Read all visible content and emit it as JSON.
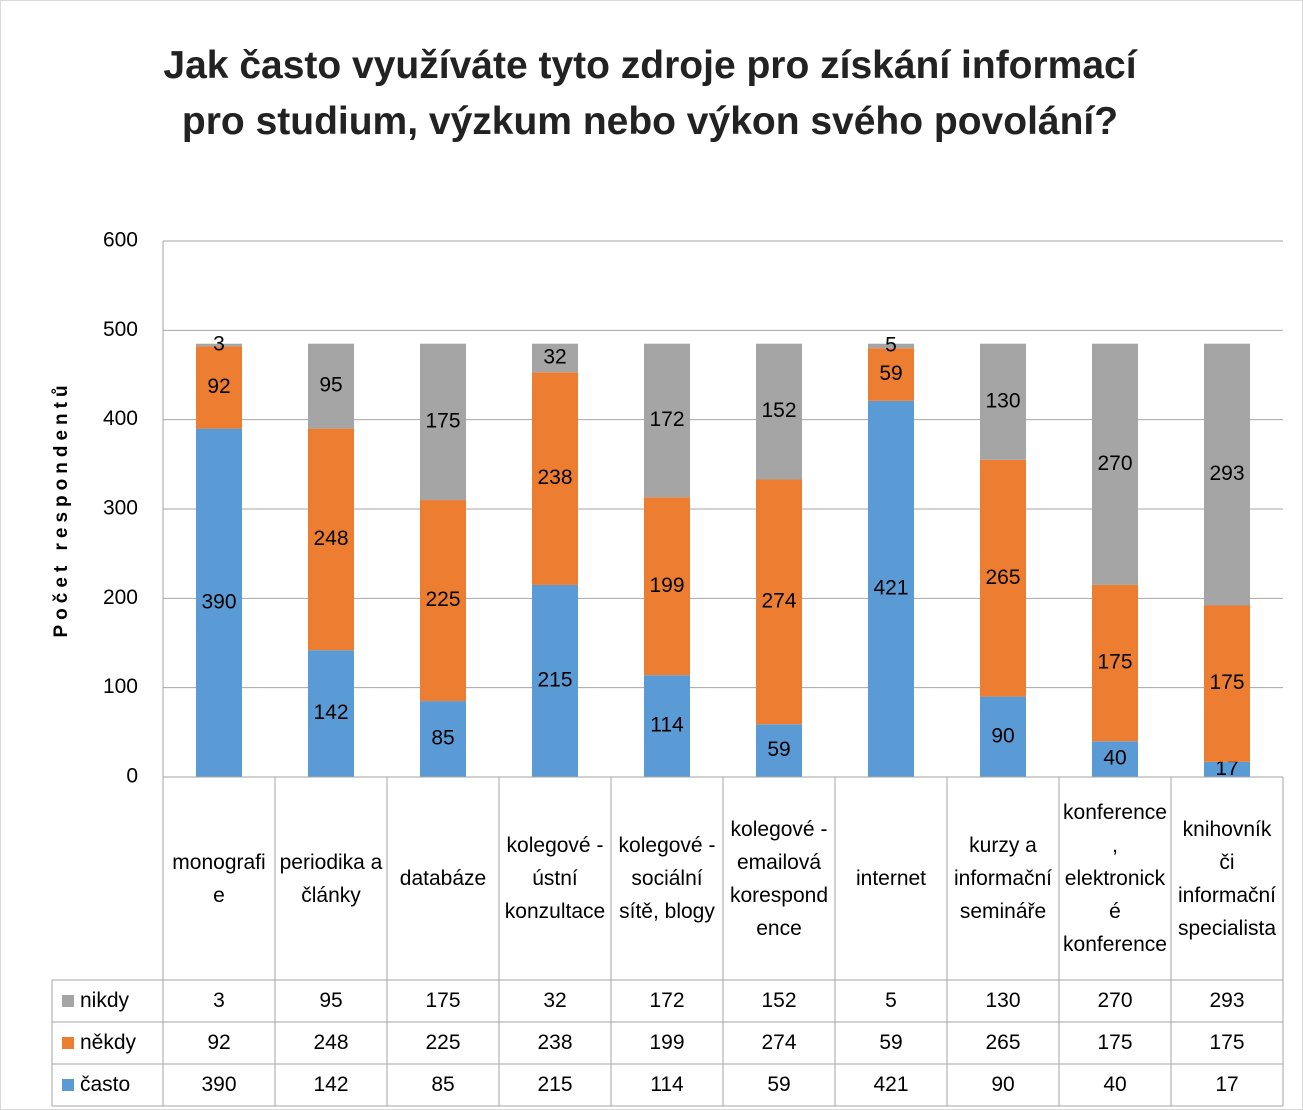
{
  "chart_data": {
    "type": "stacked_bar",
    "title": "Jak často využíváte tyto zdroje pro získání informací pro studium, výzkum nebo výkon svého povolání?",
    "y_label": "Počet respondentů",
    "categories": [
      "monografie",
      "periodika a články",
      "databáze",
      "kolegové - ústní konzultace",
      "kolegové - sociální sítě, blogy",
      "kolegové - emailová korespondence",
      "internet",
      "kurzy a informační semináře",
      "konference, elektronické konference",
      "knihovník či informační specialista"
    ],
    "series": [
      {
        "name": "nikdy",
        "color": "#a5a5a5",
        "values": [
          3,
          95,
          175,
          32,
          172,
          152,
          5,
          130,
          270,
          293
        ]
      },
      {
        "name": "někdy",
        "color": "#ed7d31",
        "values": [
          92,
          248,
          225,
          238,
          199,
          274,
          59,
          265,
          175,
          175
        ]
      },
      {
        "name": "často",
        "color": "#5b9bd5",
        "values": [
          390,
          142,
          85,
          215,
          114,
          59,
          421,
          90,
          40,
          17
        ]
      }
    ],
    "ylim": [
      0,
      600
    ],
    "yticks": [
      0,
      100,
      200,
      300,
      400,
      500,
      600
    ],
    "grid": true
  }
}
